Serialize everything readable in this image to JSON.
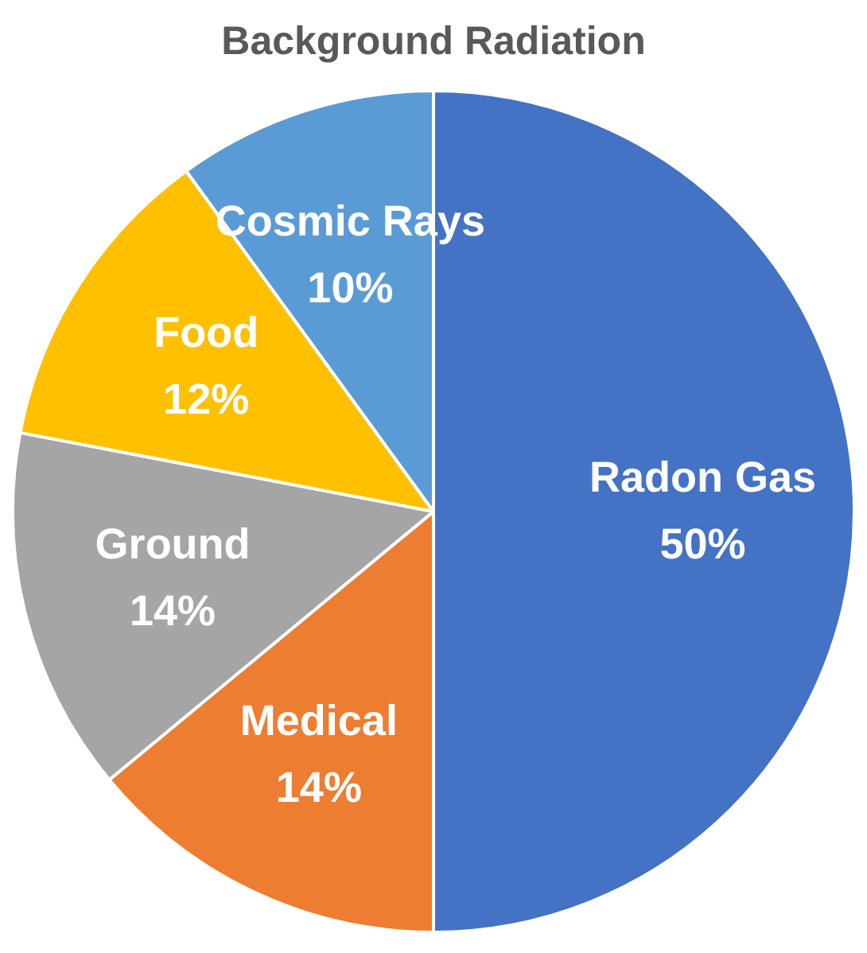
{
  "chart_data": {
    "type": "pie",
    "title": "Background Radiation",
    "categories": [
      "Radon Gas",
      "Medical",
      "Ground",
      "Food",
      "Cosmic Rays"
    ],
    "values": [
      50,
      14,
      14,
      12,
      10
    ],
    "value_labels": [
      "50%",
      "14%",
      "14%",
      "12%",
      "10%"
    ],
    "colors": [
      "#4472c4",
      "#ed7d31",
      "#a5a5a5",
      "#ffc000",
      "#5b9bd5"
    ],
    "legend": false
  }
}
